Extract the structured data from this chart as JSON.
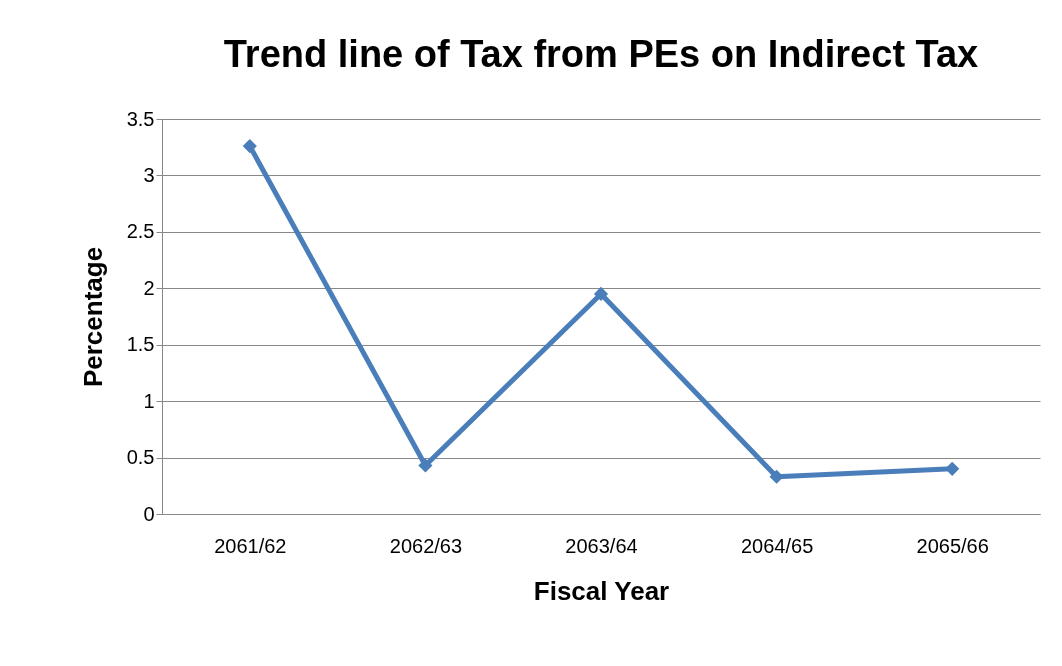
{
  "chart_data": {
    "type": "line",
    "title": "Trend line of  Tax from PEs on Indirect Tax",
    "xlabel": "Fiscal Year",
    "ylabel": "Percentage",
    "categories": [
      "2061/62",
      "2062/63",
      "2063/64",
      "2064/65",
      "2065/66"
    ],
    "series": [
      {
        "color": "#4a7ebb",
        "values": [
          3.26,
          0.43,
          1.95,
          0.33,
          0.4
        ]
      }
    ],
    "ylim": [
      0,
      3.5
    ],
    "yticks": [
      0,
      0.5,
      1,
      1.5,
      2,
      2.5,
      3,
      3.5
    ],
    "grid": "y",
    "marker": "diamond",
    "line_style": "solid"
  }
}
